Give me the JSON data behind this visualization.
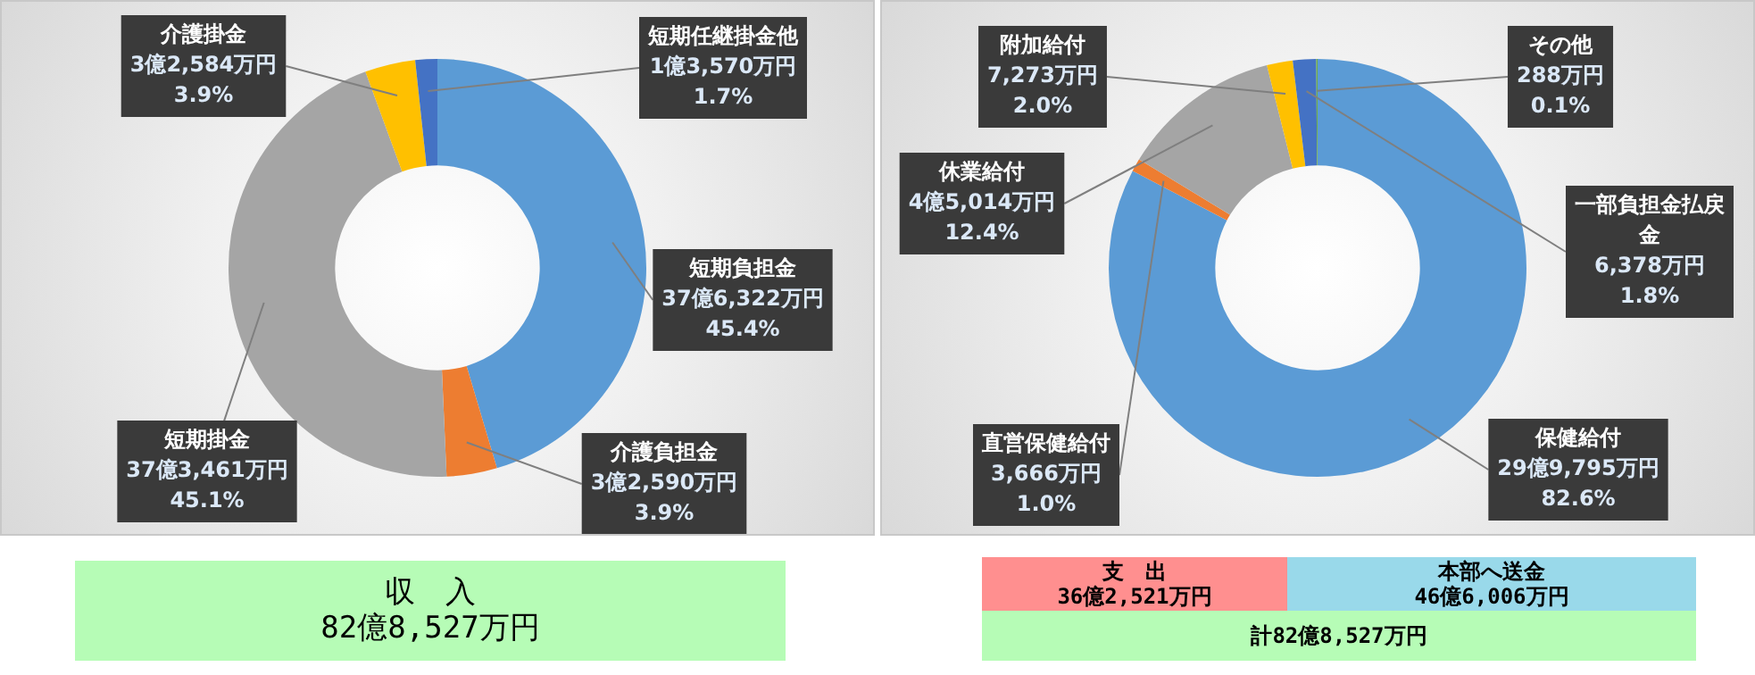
{
  "chart_data": [
    {
      "type": "donut",
      "categories": [
        "短期負担金",
        "介護負担金",
        "短期掛金",
        "介護掛金",
        "短期任継掛金他"
      ],
      "values": [
        45.4,
        3.9,
        45.1,
        3.9,
        1.7
      ],
      "colors": [
        "#5b9bd5",
        "#ed7d31",
        "#a5a5a5",
        "#ffc000",
        "#4472c4"
      ],
      "value_labels": [
        "37億6,322万円\n45.4%",
        "3億2,590万円\n3.9%",
        "37億3,461万円\n45.1%",
        "3億2,584万円\n3.9%",
        "1億3,570万円\n1.7%"
      ],
      "legend": false,
      "annotations": [
        "収　入",
        "82億8,527万円"
      ]
    },
    {
      "type": "donut",
      "categories": [
        "保健給付",
        "直営保健給付",
        "休業給付",
        "附加給付",
        "一部負担金払戻金",
        "その他"
      ],
      "values": [
        82.6,
        1.0,
        12.4,
        2.0,
        1.8,
        0.1
      ],
      "colors": [
        "#5b9bd5",
        "#ed7d31",
        "#a5a5a5",
        "#ffc000",
        "#4472c4",
        "#70ad47"
      ],
      "value_labels": [
        "29億9,795万円\n82.6%",
        "3,666万円\n1.0%",
        "4億5,014万円\n12.4%",
        "7,273万円\n2.0%",
        "6,378万円\n1.8%",
        "288万円\n0.1%"
      ],
      "legend": false,
      "annotations": [
        "支　出",
        "36億2,521万円",
        "本部へ送金",
        "46億6,006万円",
        "計82億8,527万円"
      ]
    }
  ]
}
